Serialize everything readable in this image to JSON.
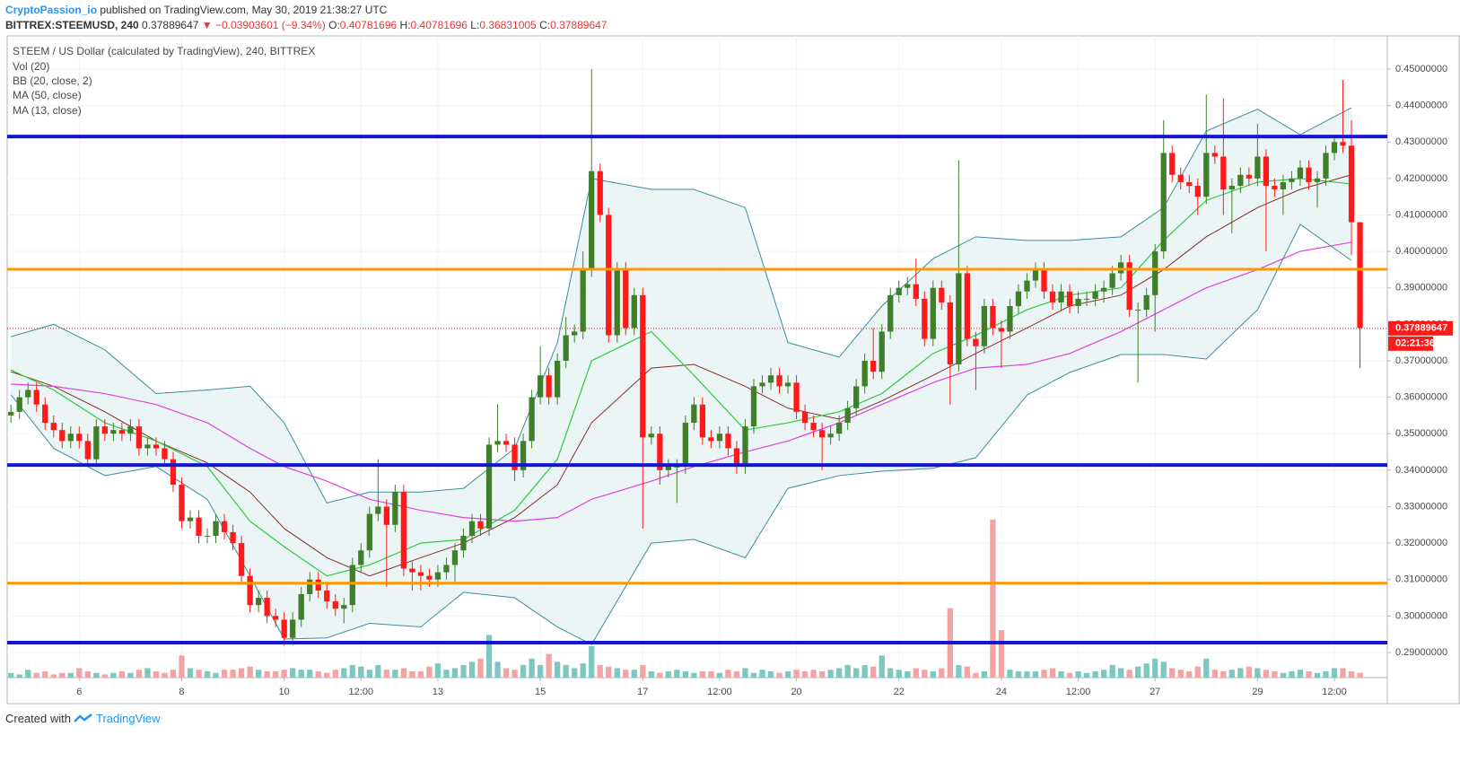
{
  "header": {
    "author": "CryptoPassion_io",
    "published": "published on TradingView.com, May 30, 2019 21:38:27 UTC",
    "symbol": "BITTREX:STEEMUSD, 240",
    "price": "0.37889647",
    "change": "▼ −0.03903601 (−9.34%)",
    "ohlc": [
      {
        "label": "O:",
        "value": "0.40781696"
      },
      {
        "label": "H:",
        "value": "0.40781696"
      },
      {
        "label": "L:",
        "value": "0.36831005"
      },
      {
        "label": "C:",
        "value": "0.37889647"
      }
    ]
  },
  "chart_data": {
    "type": "candlestick",
    "title": "STEEM / US Dollar (calculated by TradingView), 240, BITTREX",
    "open": [
      0.355,
      0.356,
      0.36,
      0.362,
      0.358,
      0.353,
      0.351,
      0.348,
      0.35,
      0.348,
      0.343,
      0.352,
      0.35,
      0.351,
      0.35,
      0.352,
      0.346,
      0.347,
      0.346,
      0.343,
      0.336,
      0.326,
      0.327,
      0.322,
      0.322,
      0.326,
      0.323,
      0.32,
      0.311,
      0.303,
      0.305,
      0.3,
      0.299,
      0.294,
      0.299,
      0.306,
      0.31,
      0.307,
      0.304,
      0.302,
      0.303,
      0.314,
      0.318,
      0.328,
      0.33,
      0.325,
      0.334,
      0.313,
      0.312,
      0.311,
      0.31,
      0.312,
      0.314,
      0.318,
      0.322,
      0.326,
      0.324,
      0.347,
      0.348,
      0.347,
      0.34,
      0.348,
      0.36,
      0.366,
      0.36,
      0.37,
      0.377,
      0.378,
      0.395,
      0.422,
      0.41,
      0.377,
      0.395,
      0.379,
      0.388,
      0.349,
      0.35,
      0.34,
      0.341,
      0.341,
      0.353,
      0.358,
      0.349,
      0.348,
      0.35,
      0.346,
      0.341,
      0.352,
      0.363,
      0.364,
      0.366,
      0.363,
      0.364,
      0.356,
      0.353,
      0.351,
      0.349,
      0.35,
      0.353,
      0.357,
      0.363,
      0.37,
      0.367,
      0.378,
      0.388,
      0.39,
      0.391,
      0.387,
      0.376,
      0.39,
      0.386,
      0.369,
      0.394,
      0.376,
      0.374,
      0.385,
      0.379,
      0.378,
      0.385,
      0.389,
      0.392,
      0.395,
      0.389,
      0.386,
      0.389,
      0.385,
      0.387,
      0.387,
      0.389,
      0.39,
      0.394,
      0.397,
      0.384,
      0.384,
      0.388,
      0.4,
      0.427,
      0.421,
      0.419,
      0.418,
      0.415,
      0.427,
      0.426,
      0.417,
      0.418,
      0.421,
      0.42,
      0.426,
      0.418,
      0.417,
      0.419,
      0.42,
      0.423,
      0.419,
      0.42,
      0.427,
      0.43,
      0.429,
      0.408
    ],
    "high": [
      0.358,
      0.362,
      0.364,
      0.364,
      0.36,
      0.355,
      0.353,
      0.352,
      0.352,
      0.35,
      0.354,
      0.354,
      0.353,
      0.353,
      0.354,
      0.354,
      0.349,
      0.349,
      0.348,
      0.345,
      0.338,
      0.329,
      0.329,
      0.324,
      0.328,
      0.328,
      0.325,
      0.322,
      0.313,
      0.307,
      0.307,
      0.302,
      0.301,
      0.301,
      0.308,
      0.312,
      0.312,
      0.309,
      0.306,
      0.305,
      0.316,
      0.32,
      0.33,
      0.343,
      0.332,
      0.336,
      0.336,
      0.315,
      0.314,
      0.313,
      0.314,
      0.316,
      0.32,
      0.324,
      0.328,
      0.328,
      0.349,
      0.358,
      0.35,
      0.349,
      0.35,
      0.362,
      0.374,
      0.368,
      0.372,
      0.382,
      0.38,
      0.4,
      0.45,
      0.424,
      0.412,
      0.397,
      0.397,
      0.39,
      0.39,
      0.352,
      0.352,
      0.343,
      0.343,
      0.355,
      0.36,
      0.36,
      0.351,
      0.352,
      0.352,
      0.348,
      0.354,
      0.365,
      0.366,
      0.368,
      0.368,
      0.366,
      0.366,
      0.358,
      0.355,
      0.353,
      0.352,
      0.355,
      0.359,
      0.365,
      0.372,
      0.379,
      0.38,
      0.39,
      0.392,
      0.393,
      0.398,
      0.389,
      0.392,
      0.392,
      0.388,
      0.425,
      0.396,
      0.378,
      0.387,
      0.387,
      0.381,
      0.387,
      0.391,
      0.394,
      0.397,
      0.397,
      0.391,
      0.391,
      0.391,
      0.389,
      0.389,
      0.391,
      0.392,
      0.396,
      0.399,
      0.399,
      0.386,
      0.39,
      0.402,
      0.436,
      0.429,
      0.423,
      0.421,
      0.42,
      0.443,
      0.429,
      0.442,
      0.42,
      0.423,
      0.423,
      0.435,
      0.428,
      0.42,
      0.421,
      0.422,
      0.425,
      0.425,
      0.422,
      0.429,
      0.432,
      0.447,
      0.436,
      0.408
    ],
    "low": [
      0.353,
      0.354,
      0.358,
      0.356,
      0.351,
      0.349,
      0.346,
      0.346,
      0.346,
      0.341,
      0.341,
      0.348,
      0.348,
      0.348,
      0.348,
      0.344,
      0.344,
      0.344,
      0.341,
      0.334,
      0.324,
      0.324,
      0.32,
      0.32,
      0.32,
      0.321,
      0.318,
      0.309,
      0.301,
      0.301,
      0.298,
      0.297,
      0.292,
      0.292,
      0.297,
      0.304,
      0.305,
      0.302,
      0.3,
      0.298,
      0.301,
      0.312,
      0.316,
      0.326,
      0.308,
      0.323,
      0.311,
      0.307,
      0.307,
      0.308,
      0.308,
      0.31,
      0.309,
      0.316,
      0.32,
      0.322,
      0.322,
      0.345,
      0.345,
      0.337,
      0.338,
      0.346,
      0.358,
      0.358,
      0.358,
      0.368,
      0.375,
      0.376,
      0.393,
      0.408,
      0.375,
      0.375,
      0.377,
      0.377,
      0.324,
      0.347,
      0.336,
      0.338,
      0.331,
      0.339,
      0.351,
      0.347,
      0.346,
      0.346,
      0.344,
      0.339,
      0.339,
      0.35,
      0.361,
      0.362,
      0.361,
      0.361,
      0.354,
      0.351,
      0.349,
      0.34,
      0.347,
      0.348,
      0.351,
      0.355,
      0.361,
      0.365,
      0.365,
      0.376,
      0.386,
      0.388,
      0.385,
      0.374,
      0.374,
      0.384,
      0.358,
      0.367,
      0.374,
      0.362,
      0.372,
      0.377,
      0.368,
      0.376,
      0.383,
      0.387,
      0.39,
      0.387,
      0.384,
      0.384,
      0.383,
      0.383,
      0.385,
      0.385,
      0.386,
      0.388,
      0.392,
      0.382,
      0.364,
      0.382,
      0.378,
      0.398,
      0.419,
      0.417,
      0.416,
      0.41,
      0.413,
      0.424,
      0.41,
      0.405,
      0.416,
      0.418,
      0.418,
      0.4,
      0.415,
      0.41,
      0.417,
      0.418,
      0.417,
      0.412,
      0.418,
      0.425,
      0.427,
      0.399,
      0.368
    ],
    "close": [
      0.356,
      0.36,
      0.362,
      0.358,
      0.353,
      0.351,
      0.348,
      0.35,
      0.348,
      0.343,
      0.352,
      0.35,
      0.351,
      0.35,
      0.352,
      0.346,
      0.347,
      0.346,
      0.343,
      0.336,
      0.326,
      0.327,
      0.322,
      0.322,
      0.326,
      0.323,
      0.32,
      0.311,
      0.303,
      0.305,
      0.3,
      0.299,
      0.294,
      0.299,
      0.306,
      0.31,
      0.307,
      0.304,
      0.302,
      0.303,
      0.314,
      0.318,
      0.328,
      0.33,
      0.325,
      0.334,
      0.313,
      0.312,
      0.311,
      0.31,
      0.312,
      0.314,
      0.318,
      0.322,
      0.326,
      0.324,
      0.347,
      0.348,
      0.347,
      0.34,
      0.348,
      0.36,
      0.366,
      0.36,
      0.37,
      0.377,
      0.378,
      0.395,
      0.422,
      0.41,
      0.377,
      0.395,
      0.379,
      0.388,
      0.349,
      0.35,
      0.34,
      0.341,
      0.341,
      0.353,
      0.358,
      0.349,
      0.348,
      0.35,
      0.346,
      0.341,
      0.352,
      0.363,
      0.364,
      0.366,
      0.363,
      0.364,
      0.356,
      0.353,
      0.351,
      0.349,
      0.35,
      0.353,
      0.357,
      0.363,
      0.37,
      0.367,
      0.378,
      0.388,
      0.39,
      0.391,
      0.387,
      0.376,
      0.39,
      0.386,
      0.369,
      0.394,
      0.376,
      0.374,
      0.385,
      0.379,
      0.378,
      0.385,
      0.389,
      0.392,
      0.395,
      0.389,
      0.386,
      0.389,
      0.385,
      0.387,
      0.387,
      0.389,
      0.39,
      0.394,
      0.397,
      0.384,
      0.384,
      0.388,
      0.4,
      0.427,
      0.421,
      0.419,
      0.418,
      0.415,
      0.427,
      0.426,
      0.417,
      0.418,
      0.421,
      0.42,
      0.426,
      0.418,
      0.417,
      0.419,
      0.42,
      0.423,
      0.419,
      0.42,
      0.427,
      0.43,
      0.429,
      0.408,
      0.379
    ],
    "up_color": "#3f7f29",
    "down_color": "#ff1a1a",
    "volume": {
      "name": "Vol (20)",
      "ylim": [
        0,
        406
      ],
      "up_color": "#7cc8c0",
      "down_color": "#f4a3a3",
      "values": [
        3,
        2,
        5,
        3,
        4,
        2,
        3,
        3,
        6,
        4,
        3,
        2,
        3,
        4,
        3,
        5,
        6,
        4,
        3,
        5,
        14,
        6,
        5,
        4,
        3,
        5,
        5,
        6,
        7,
        5,
        4,
        4,
        5,
        6,
        5,
        5,
        4,
        3,
        5,
        6,
        8,
        7,
        5,
        8,
        5,
        5,
        6,
        4,
        4,
        7,
        9,
        5,
        6,
        8,
        10,
        12,
        27,
        10,
        6,
        5,
        8,
        12,
        8,
        15,
        10,
        8,
        6,
        9,
        20,
        8,
        7,
        6,
        5,
        5,
        8,
        4,
        3,
        4,
        5,
        4,
        3,
        4,
        4,
        3,
        5,
        4,
        6,
        3,
        5,
        4,
        3,
        4,
        5,
        4,
        5,
        4,
        5,
        6,
        8,
        6,
        8,
        7,
        14,
        6,
        5,
        4,
        6,
        5,
        4,
        6,
        44,
        8,
        7,
        3,
        4,
        100,
        30,
        5,
        4,
        4,
        4,
        5,
        6,
        4,
        3,
        4,
        3,
        4,
        5,
        8,
        6,
        5,
        7,
        9,
        12,
        10,
        6,
        5,
        4,
        7,
        12,
        5,
        4,
        5,
        6,
        7,
        6,
        5,
        4,
        3,
        4,
        5,
        4,
        3,
        4,
        6,
        6,
        4,
        3
      ]
    },
    "overlay_x": [
      0,
      5,
      11,
      17,
      23,
      28,
      32,
      37,
      42,
      48,
      53,
      59,
      64,
      68,
      75,
      80,
      86,
      91,
      97,
      102,
      108,
      113,
      119,
      124,
      130,
      135,
      140,
      146,
      151,
      157
    ],
    "bb": {
      "name": "BB (20, close, 2)",
      "basis_color": "#8b2b2b",
      "band_color": "#3a8f9c",
      "fill": "#e6f3f2",
      "basis": [
        0.367,
        0.363,
        0.356,
        0.348,
        0.342,
        0.334,
        0.324,
        0.316,
        0.311,
        0.316,
        0.32,
        0.327,
        0.336,
        0.353,
        0.368,
        0.369,
        0.363,
        0.357,
        0.354,
        0.359,
        0.366,
        0.372,
        0.379,
        0.385,
        0.388,
        0.395,
        0.404,
        0.412,
        0.417,
        0.421
      ],
      "upper": [
        0.3766,
        0.38,
        0.373,
        0.361,
        0.362,
        0.363,
        0.353,
        0.331,
        0.334,
        0.334,
        0.335,
        0.346,
        0.375,
        0.42,
        0.417,
        0.417,
        0.412,
        0.375,
        0.371,
        0.385,
        0.398,
        0.404,
        0.403,
        0.403,
        0.404,
        0.412,
        0.433,
        0.439,
        0.432,
        0.4394
      ],
      "lower": [
        0.3607,
        0.346,
        0.3385,
        0.341,
        0.332,
        0.311,
        0.2937,
        0.294,
        0.298,
        0.297,
        0.3065,
        0.305,
        0.297,
        0.2922,
        0.32,
        0.321,
        0.316,
        0.335,
        0.3385,
        0.3397,
        0.3405,
        0.3434,
        0.3606,
        0.3668,
        0.3717,
        0.3717,
        0.3705,
        0.384,
        0.4074,
        0.3975
      ]
    },
    "ma": [
      {
        "name": "MA (50, close)",
        "color": "#e040e0",
        "values": [
          0.3636,
          0.363,
          0.361,
          0.358,
          0.353,
          0.346,
          0.341,
          0.337,
          0.332,
          0.329,
          0.327,
          0.326,
          0.327,
          0.332,
          0.337,
          0.341,
          0.345,
          0.348,
          0.353,
          0.358,
          0.364,
          0.368,
          0.369,
          0.372,
          0.378,
          0.384,
          0.39,
          0.395,
          0.4,
          0.4025
        ]
      },
      {
        "name": "MA (13, close)",
        "color": "#2ccb3a",
        "values": [
          0.3675,
          0.362,
          0.353,
          0.348,
          0.341,
          0.326,
          0.319,
          0.311,
          0.314,
          0.32,
          0.321,
          0.329,
          0.343,
          0.37,
          0.378,
          0.366,
          0.351,
          0.353,
          0.356,
          0.361,
          0.372,
          0.377,
          0.384,
          0.388,
          0.39,
          0.403,
          0.414,
          0.419,
          0.42,
          0.4185
        ]
      }
    ],
    "levels": [
      {
        "value": 0.4315,
        "color": "#1515d6"
      },
      {
        "value": 0.3951,
        "color": "#ff9800"
      },
      {
        "value": 0.3414,
        "color": "#1515d6"
      },
      {
        "value": 0.309,
        "color": "#ff9800"
      },
      {
        "value": 0.2927,
        "color": "#1515d6"
      }
    ],
    "last_price": 0.37889647,
    "last_price_label": "0.37889647",
    "countdown": "02:21:36",
    "last_price_color": "#ff1a1a",
    "xlim": [
      -0.44,
      161.2
    ],
    "xticks": [
      {
        "value": 8,
        "label": "6"
      },
      {
        "value": 20,
        "label": "8"
      },
      {
        "value": 32,
        "label": "10"
      },
      {
        "value": 41,
        "label": "12:00"
      },
      {
        "value": 50,
        "label": "13"
      },
      {
        "value": 62,
        "label": "15"
      },
      {
        "value": 74,
        "label": "17"
      },
      {
        "value": 83,
        "label": "12:00"
      },
      {
        "value": 92,
        "label": "20"
      },
      {
        "value": 104,
        "label": "22"
      },
      {
        "value": 116,
        "label": "24"
      },
      {
        "value": 125,
        "label": "12:00"
      },
      {
        "value": 134,
        "label": "27"
      },
      {
        "value": 146,
        "label": "29"
      },
      {
        "value": 155,
        "label": "12:00"
      }
    ],
    "ylim": [
      0.2831,
      0.4591
    ],
    "yticks": [
      {
        "value": 0.29,
        "label": "0.29000000"
      },
      {
        "value": 0.3,
        "label": "0.30000000"
      },
      {
        "value": 0.31,
        "label": "0.31000000"
      },
      {
        "value": 0.32,
        "label": "0.32000000"
      },
      {
        "value": 0.33,
        "label": "0.33000000"
      },
      {
        "value": 0.34,
        "label": "0.34000000"
      },
      {
        "value": 0.35,
        "label": "0.35000000"
      },
      {
        "value": 0.36,
        "label": "0.36000000"
      },
      {
        "value": 0.37,
        "label": "0.37000000"
      },
      {
        "value": 0.38,
        "label": "0.38000000"
      },
      {
        "value": 0.39,
        "label": "0.39000000"
      },
      {
        "value": 0.4,
        "label": "0.40000000"
      },
      {
        "value": 0.41,
        "label": "0.41000000"
      },
      {
        "value": 0.42,
        "label": "0.42000000"
      },
      {
        "value": 0.43,
        "label": "0.43000000"
      },
      {
        "value": 0.44,
        "label": "0.44000000"
      },
      {
        "value": 0.45,
        "label": "0.45000000"
      }
    ],
    "grid": true
  },
  "footer": {
    "text": "Created with",
    "brand": "TradingView"
  }
}
